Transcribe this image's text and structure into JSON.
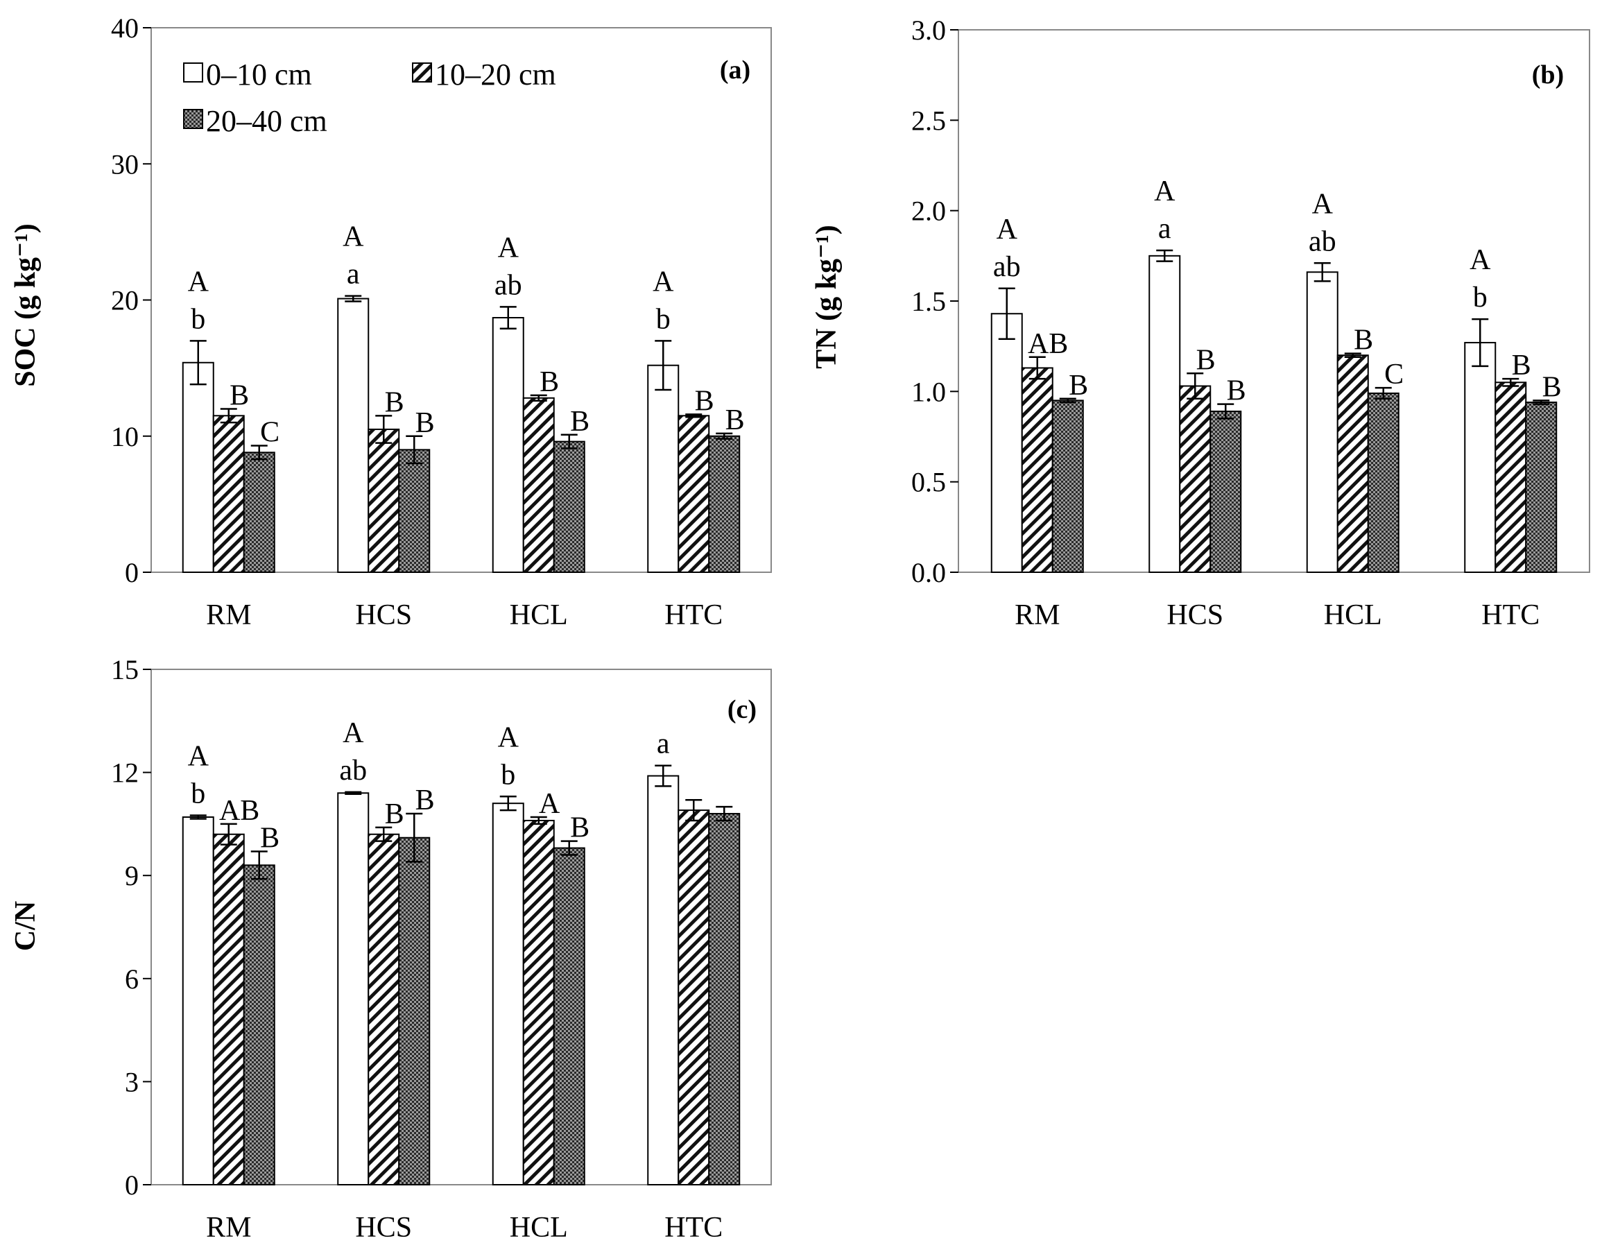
{
  "chart_data": [
    {
      "type": "bar",
      "panel_label": "(a)",
      "ylabel": "SOC (g kg⁻¹)",
      "ylim": [
        0,
        40
      ],
      "yticks": [
        "0",
        "10",
        "20",
        "30",
        "40"
      ],
      "categories": [
        "RM",
        "HCS",
        "HCL",
        "HTC"
      ],
      "legend": [
        "0–10 cm",
        "10–20 cm",
        "20–40 cm"
      ],
      "series": [
        {
          "name": "0–10 cm",
          "pattern": "white",
          "values": [
            15.4,
            20.1,
            18.7,
            15.2
          ],
          "errors": [
            1.6,
            0.2,
            0.8,
            1.8
          ]
        },
        {
          "name": "10–20 cm",
          "pattern": "hatch",
          "values": [
            11.5,
            10.5,
            12.8,
            11.5
          ],
          "errors": [
            0.5,
            1.0,
            0.2,
            0.1
          ]
        },
        {
          "name": "20–40 cm",
          "pattern": "dots",
          "values": [
            8.8,
            9.0,
            9.6,
            10.0
          ],
          "errors": [
            0.5,
            1.0,
            0.5,
            0.2
          ]
        }
      ],
      "letters": [
        [
          "A",
          "b",
          "B",
          "C"
        ],
        [
          "A",
          "a",
          "B",
          "B"
        ],
        [
          "A",
          "ab",
          "B",
          "B"
        ],
        [
          "A",
          "b",
          "B",
          "B"
        ]
      ]
    },
    {
      "type": "bar",
      "panel_label": "(b)",
      "ylabel": "TN (g kg⁻¹)",
      "ylim": [
        0,
        3.0
      ],
      "yticks": [
        "0.0",
        "0.5",
        "1.0",
        "1.5",
        "2.0",
        "2.5",
        "3.0"
      ],
      "categories": [
        "RM",
        "HCS",
        "HCL",
        "HTC"
      ],
      "series": [
        {
          "name": "0–10 cm",
          "pattern": "white",
          "values": [
            1.43,
            1.75,
            1.66,
            1.27
          ],
          "errors": [
            0.14,
            0.03,
            0.05,
            0.13
          ]
        },
        {
          "name": "10–20 cm",
          "pattern": "hatch",
          "values": [
            1.13,
            1.03,
            1.2,
            1.05
          ],
          "errors": [
            0.06,
            0.07,
            0.01,
            0.02
          ]
        },
        {
          "name": "20–40 cm",
          "pattern": "dots",
          "values": [
            0.95,
            0.89,
            0.99,
            0.94
          ],
          "errors": [
            0.01,
            0.04,
            0.03,
            0.01
          ]
        }
      ],
      "letters": [
        [
          "A",
          "ab",
          "AB",
          "B"
        ],
        [
          "A",
          "a",
          "B",
          "B"
        ],
        [
          "A",
          "ab",
          "B",
          "C"
        ],
        [
          "A",
          "b",
          "B",
          "B"
        ]
      ]
    },
    {
      "type": "bar",
      "panel_label": "(c)",
      "ylabel": "C/N",
      "ylim": [
        0,
        15
      ],
      "yticks": [
        "0",
        "3",
        "6",
        "9",
        "12",
        "15"
      ],
      "categories": [
        "RM",
        "HCS",
        "HCL",
        "HTC"
      ],
      "series": [
        {
          "name": "0–10 cm",
          "pattern": "white",
          "values": [
            10.7,
            11.4,
            11.1,
            11.9
          ],
          "errors": [
            0.05,
            0.03,
            0.2,
            0.3
          ]
        },
        {
          "name": "10–20 cm",
          "pattern": "hatch",
          "values": [
            10.2,
            10.2,
            10.6,
            10.9
          ],
          "errors": [
            0.3,
            0.2,
            0.1,
            0.3
          ]
        },
        {
          "name": "20–40 cm",
          "pattern": "dots",
          "values": [
            9.3,
            10.1,
            9.8,
            10.8
          ],
          "errors": [
            0.4,
            0.7,
            0.2,
            0.2
          ]
        }
      ],
      "letters": [
        [
          "A",
          "b",
          "AB",
          "B"
        ],
        [
          "A",
          "ab",
          "B",
          "B"
        ],
        [
          "A",
          "b",
          "A",
          "B"
        ],
        [
          "",
          "a",
          "",
          ""
        ]
      ]
    }
  ]
}
